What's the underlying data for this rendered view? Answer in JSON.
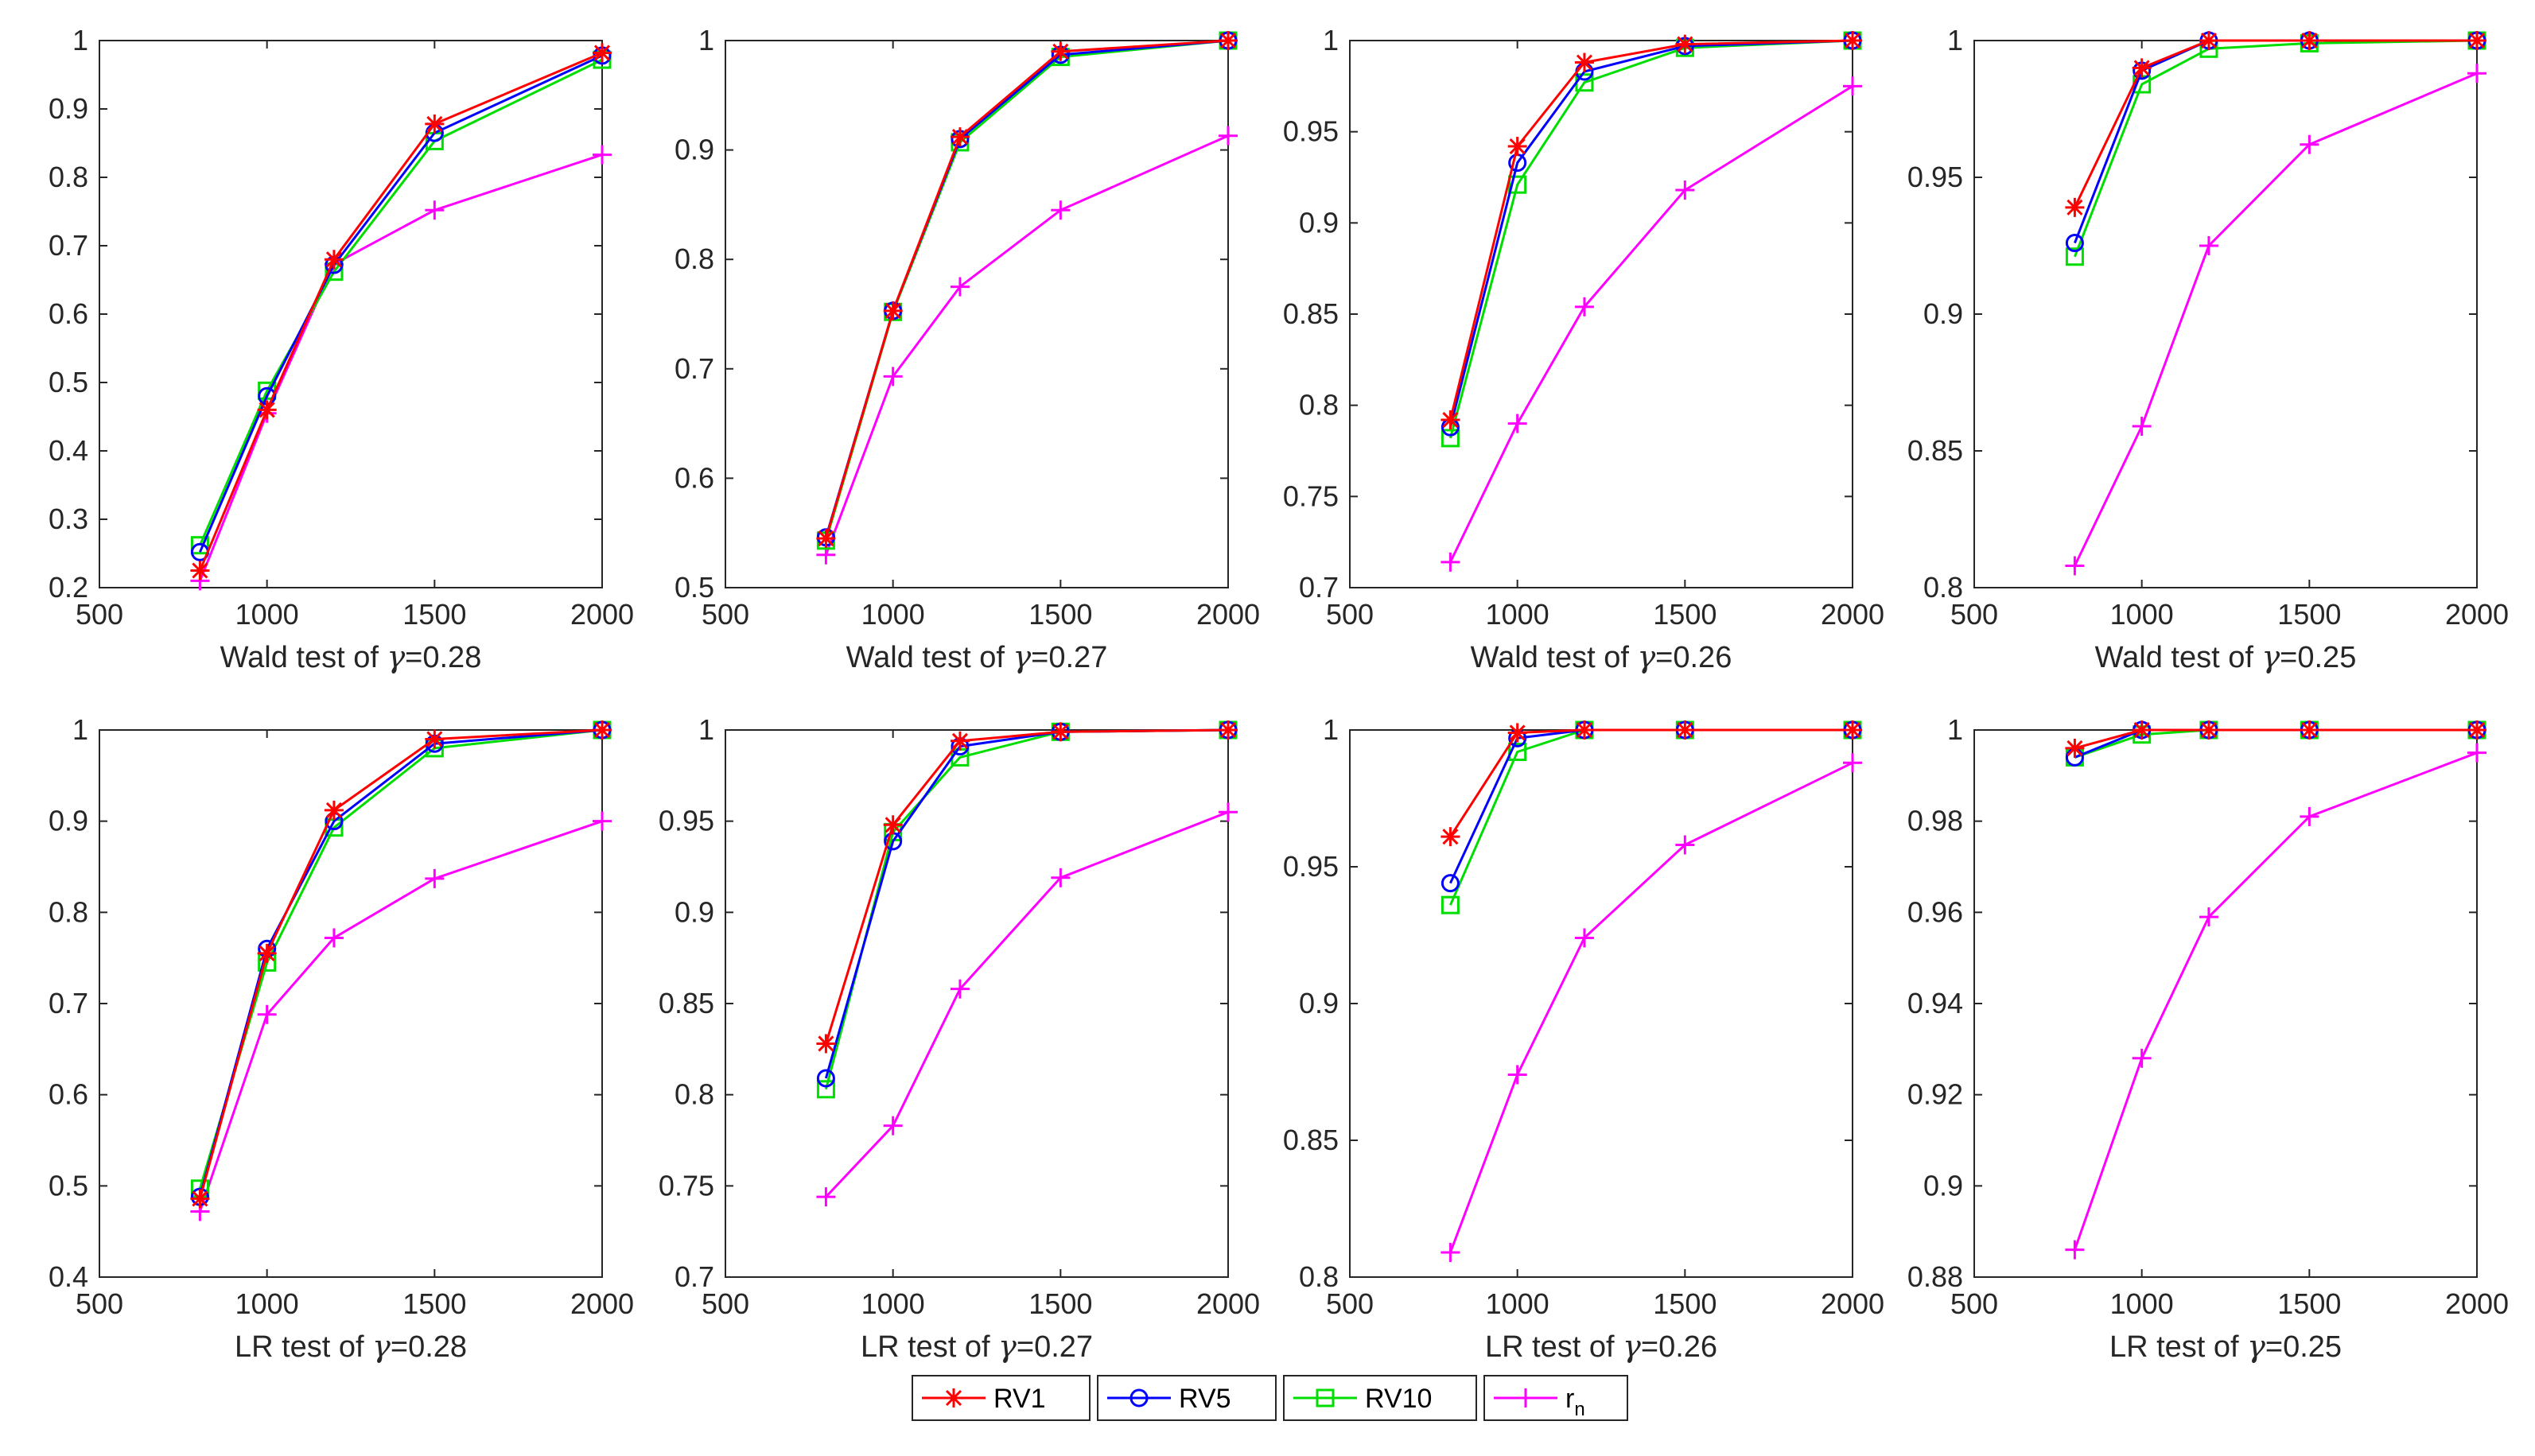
{
  "chart_data": [
    {
      "type": "line",
      "title": "",
      "xlabel_prefix": "Wald test of ",
      "xlabel_symbol": "γ",
      "xlabel_suffix": "=0.28",
      "ylabel": "",
      "x": [
        800,
        1000,
        1200,
        1500,
        2000
      ],
      "xlim": [
        500,
        2000
      ],
      "xticks": [
        500,
        1000,
        1500,
        2000
      ],
      "ylim": [
        0.2,
        1.0
      ],
      "yticks": [
        "0.2",
        "0.3",
        "0.4",
        "0.5",
        "0.6",
        "0.7",
        "0.8",
        "0.9",
        "1"
      ],
      "grid": false,
      "series": [
        {
          "name": "RV1",
          "values": [
            0.225,
            0.46,
            0.68,
            0.878,
            0.982
          ]
        },
        {
          "name": "RV5",
          "values": [
            0.252,
            0.48,
            0.672,
            0.865,
            0.978
          ]
        },
        {
          "name": "RV10",
          "values": [
            0.262,
            0.488,
            0.662,
            0.853,
            0.972
          ]
        },
        {
          "name": "r_n",
          "values": [
            0.21,
            0.455,
            0.673,
            0.752,
            0.833
          ]
        }
      ]
    },
    {
      "type": "line",
      "title": "",
      "xlabel_prefix": "Wald test of ",
      "xlabel_symbol": "γ",
      "xlabel_suffix": "=0.27",
      "ylabel": "",
      "x": [
        800,
        1000,
        1200,
        1500,
        2000
      ],
      "xlim": [
        500,
        2000
      ],
      "xticks": [
        500,
        1000,
        1500,
        2000
      ],
      "ylim": [
        0.5,
        1.0
      ],
      "yticks": [
        "0.5",
        "0.6",
        "0.7",
        "0.8",
        "0.9",
        "1"
      ],
      "grid": false,
      "series": [
        {
          "name": "RV1",
          "values": [
            0.545,
            0.753,
            0.912,
            0.99,
            1.0
          ]
        },
        {
          "name": "RV5",
          "values": [
            0.546,
            0.753,
            0.91,
            0.987,
            1.0
          ]
        },
        {
          "name": "RV10",
          "values": [
            0.543,
            0.752,
            0.907,
            0.985,
            1.0
          ]
        },
        {
          "name": "r_n",
          "values": [
            0.53,
            0.693,
            0.775,
            0.845,
            0.913
          ]
        }
      ]
    },
    {
      "type": "line",
      "title": "",
      "xlabel_prefix": "Wald test of ",
      "xlabel_symbol": "γ",
      "xlabel_suffix": "=0.26",
      "ylabel": "",
      "x": [
        800,
        1000,
        1200,
        1500,
        2000
      ],
      "xlim": [
        500,
        2000
      ],
      "xticks": [
        500,
        1000,
        1500,
        2000
      ],
      "ylim": [
        0.7,
        1.0
      ],
      "yticks": [
        "0.7",
        "0.75",
        "0.8",
        "0.85",
        "0.9",
        "0.95",
        "1"
      ],
      "grid": false,
      "series": [
        {
          "name": "RV1",
          "values": [
            0.792,
            0.942,
            0.988,
            0.998,
            1.0
          ]
        },
        {
          "name": "RV5",
          "values": [
            0.788,
            0.933,
            0.983,
            0.997,
            1.0
          ]
        },
        {
          "name": "RV10",
          "values": [
            0.782,
            0.921,
            0.977,
            0.996,
            1.0
          ]
        },
        {
          "name": "r_n",
          "values": [
            0.714,
            0.79,
            0.854,
            0.918,
            0.975
          ]
        }
      ]
    },
    {
      "type": "line",
      "title": "",
      "xlabel_prefix": "Wald test of ",
      "xlabel_symbol": "γ",
      "xlabel_suffix": "=0.25",
      "ylabel": "",
      "x": [
        800,
        1000,
        1200,
        1500,
        2000
      ],
      "xlim": [
        500,
        2000
      ],
      "xticks": [
        500,
        1000,
        1500,
        2000
      ],
      "ylim": [
        0.8,
        1.0
      ],
      "yticks": [
        "0.8",
        "0.85",
        "0.9",
        "0.95",
        "1"
      ],
      "grid": false,
      "series": [
        {
          "name": "RV1",
          "values": [
            0.939,
            0.99,
            1.0,
            1.0,
            1.0
          ]
        },
        {
          "name": "RV5",
          "values": [
            0.926,
            0.989,
            1.0,
            1.0,
            1.0
          ]
        },
        {
          "name": "RV10",
          "values": [
            0.921,
            0.984,
            0.997,
            0.999,
            1.0
          ]
        },
        {
          "name": "r_n",
          "values": [
            0.808,
            0.859,
            0.925,
            0.962,
            0.988
          ]
        }
      ]
    },
    {
      "type": "line",
      "title": "",
      "xlabel_prefix": "LR test of ",
      "xlabel_symbol": "γ",
      "xlabel_suffix": "=0.28",
      "ylabel": "",
      "x": [
        800,
        1000,
        1200,
        1500,
        2000
      ],
      "xlim": [
        500,
        2000
      ],
      "xticks": [
        500,
        1000,
        1500,
        2000
      ],
      "ylim": [
        0.4,
        1.0
      ],
      "yticks": [
        "0.4",
        "0.5",
        "0.6",
        "0.7",
        "0.8",
        "0.9",
        "1"
      ],
      "grid": false,
      "series": [
        {
          "name": "RV1",
          "values": [
            0.486,
            0.755,
            0.912,
            0.99,
            1.0
          ]
        },
        {
          "name": "RV5",
          "values": [
            0.488,
            0.76,
            0.9,
            0.985,
            1.0
          ]
        },
        {
          "name": "RV10",
          "values": [
            0.497,
            0.745,
            0.893,
            0.98,
            1.0
          ]
        },
        {
          "name": "r_n",
          "values": [
            0.472,
            0.688,
            0.772,
            0.837,
            0.9
          ]
        }
      ]
    },
    {
      "type": "line",
      "title": "",
      "xlabel_prefix": "LR test of ",
      "xlabel_symbol": "γ",
      "xlabel_suffix": "=0.27",
      "ylabel": "",
      "x": [
        800,
        1000,
        1200,
        1500,
        2000
      ],
      "xlim": [
        500,
        2000
      ],
      "xticks": [
        500,
        1000,
        1500,
        2000
      ],
      "ylim": [
        0.7,
        1.0
      ],
      "yticks": [
        "0.7",
        "0.75",
        "0.8",
        "0.85",
        "0.9",
        "0.95",
        "1"
      ],
      "grid": false,
      "series": [
        {
          "name": "RV1",
          "values": [
            0.828,
            0.948,
            0.994,
            0.999,
            1.0
          ]
        },
        {
          "name": "RV5",
          "values": [
            0.809,
            0.939,
            0.991,
            0.999,
            1.0
          ]
        },
        {
          "name": "RV10",
          "values": [
            0.803,
            0.944,
            0.985,
            0.999,
            1.0
          ]
        },
        {
          "name": "r_n",
          "values": [
            0.744,
            0.783,
            0.858,
            0.919,
            0.955
          ]
        }
      ]
    },
    {
      "type": "line",
      "title": "",
      "xlabel_prefix": "LR test of ",
      "xlabel_symbol": "γ",
      "xlabel_suffix": "=0.26",
      "ylabel": "",
      "x": [
        800,
        1000,
        1200,
        1500,
        2000
      ],
      "xlim": [
        500,
        2000
      ],
      "xticks": [
        500,
        1000,
        1500,
        2000
      ],
      "ylim": [
        0.8,
        1.0
      ],
      "yticks": [
        "0.8",
        "0.85",
        "0.9",
        "0.95",
        "1"
      ],
      "grid": false,
      "series": [
        {
          "name": "RV1",
          "values": [
            0.961,
            0.999,
            1.0,
            1.0,
            1.0
          ]
        },
        {
          "name": "RV5",
          "values": [
            0.944,
            0.997,
            1.0,
            1.0,
            1.0
          ]
        },
        {
          "name": "RV10",
          "values": [
            0.936,
            0.992,
            1.0,
            1.0,
            1.0
          ]
        },
        {
          "name": "r_n",
          "values": [
            0.809,
            0.874,
            0.924,
            0.958,
            0.988
          ]
        }
      ]
    },
    {
      "type": "line",
      "title": "",
      "xlabel_prefix": "LR test of ",
      "xlabel_symbol": "γ",
      "xlabel_suffix": "=0.25",
      "ylabel": "",
      "x": [
        800,
        1000,
        1200,
        1500,
        2000
      ],
      "xlim": [
        500,
        2000
      ],
      "xticks": [
        500,
        1000,
        1500,
        2000
      ],
      "ylim": [
        0.88,
        1.0
      ],
      "yticks": [
        "0.88",
        "0.9",
        "0.92",
        "0.94",
        "0.96",
        "0.98",
        "1"
      ],
      "grid": false,
      "series": [
        {
          "name": "RV1",
          "values": [
            0.996,
            1.0,
            1.0,
            1.0,
            1.0
          ]
        },
        {
          "name": "RV5",
          "values": [
            0.994,
            1.0,
            1.0,
            1.0,
            1.0
          ]
        },
        {
          "name": "RV10",
          "values": [
            0.994,
            0.999,
            1.0,
            1.0,
            1.0
          ]
        },
        {
          "name": "r_n",
          "values": [
            0.886,
            0.928,
            0.959,
            0.981,
            0.995
          ]
        }
      ]
    }
  ],
  "legend": {
    "placement": "bottom-center",
    "entries": [
      {
        "name": "RV1",
        "label": "RV1",
        "color": "#ff0000",
        "marker": "asterisk"
      },
      {
        "name": "RV5",
        "label": "RV5",
        "color": "#0000ff",
        "marker": "circle"
      },
      {
        "name": "RV10",
        "label": "RV10",
        "color": "#00dd00",
        "marker": "square"
      },
      {
        "name": "r_n",
        "label_main": "r",
        "label_sub": "n",
        "color": "#ff00ff",
        "marker": "plus"
      }
    ]
  }
}
